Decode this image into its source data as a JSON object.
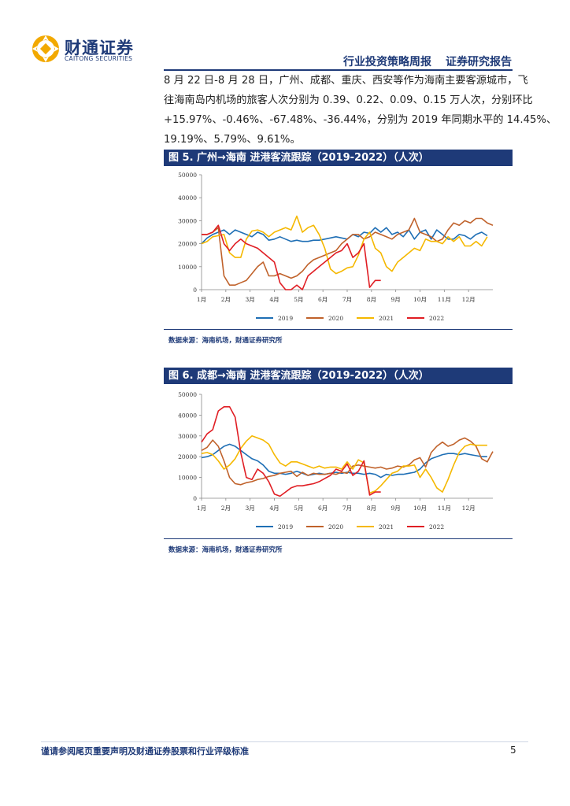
{
  "header": {
    "logo_name": "财通证券",
    "logo_sub": "CAITONG SECURITIES",
    "report_type": "行业投资策略周报",
    "report_category": "证券研究报告"
  },
  "body": {
    "lines": [
      "8 月 22 日-8 月 28 日，广州、成都、重庆、西安等作为海南主要客源城市，飞",
      "往海南岛内机场的旅客人次分别为 0.39、0.22、0.09、0.15 万人次，分别环比",
      "+15.97%、-0.46%、-67.48%、-36.44%，分别为 2019 年同期水平的 14.45%、",
      "19.19%、5.79%、9.61%。"
    ]
  },
  "figures": [
    {
      "caption": "图 5. 广州→海南  进港客流跟踪（2019-2022）（人次）",
      "source": "数据来源：海南机场，财通证券研究所"
    },
    {
      "caption": "图 6. 成都→海南  进港客流跟踪（2019-2022）（人次）",
      "source": "数据来源：海南机场，财通证券研究所"
    }
  ],
  "chart_data": [
    {
      "type": "line",
      "title": "广州→海南 进港客流跟踪（2019-2022）（人次）",
      "ylim": [
        0,
        50000
      ],
      "yticks": [
        "0",
        "10000",
        "20000",
        "30000",
        "40000",
        "50000"
      ],
      "month_labels": [
        "1月",
        "2月",
        "3月",
        "4月",
        "5月",
        "6月",
        "7月",
        "8月",
        "9月",
        "10月",
        "11月",
        "12月"
      ],
      "x_unit": "week",
      "series": [
        {
          "name": "2019",
          "color": "#1f6fb5",
          "values": [
            20000,
            22500,
            24000,
            25000,
            26000,
            24000,
            26000,
            25000,
            24000,
            23000,
            25000,
            24000,
            21500,
            22000,
            23000,
            22000,
            21000,
            21500,
            21000,
            21000,
            21500,
            21500,
            22000,
            22500,
            23000,
            22500,
            22000,
            24000,
            23000,
            25000,
            24500,
            27000,
            25000,
            27000,
            24000,
            25000,
            23000,
            26000,
            22000,
            25000,
            26000,
            22000,
            26000,
            24000,
            22000,
            22000,
            24000,
            23500,
            22000,
            24000,
            25000,
            23500
          ]
        },
        {
          "name": "2020",
          "color": "#c0622b",
          "values": [
            24000,
            24000,
            25000,
            27000,
            6000,
            2000,
            2000,
            3000,
            4000,
            7000,
            10000,
            12000,
            6000,
            6000,
            7000,
            6000,
            5000,
            6000,
            8000,
            11000,
            13000,
            14000,
            15000,
            16000,
            17000,
            20000,
            22000,
            24000,
            24000,
            22000,
            23000,
            25000,
            24000,
            23000,
            22000,
            24000,
            25000,
            26000,
            31000,
            25000,
            24000,
            23000,
            21000,
            22000,
            26000,
            29000,
            28000,
            30000,
            29000,
            31000,
            31000,
            29000,
            28000
          ]
        },
        {
          "name": "2021",
          "color": "#f5b800",
          "values": [
            20000,
            21000,
            23000,
            23500,
            24000,
            16000,
            14000,
            14000,
            22000,
            25500,
            26000,
            25000,
            23000,
            25000,
            26000,
            27000,
            26000,
            32000,
            25000,
            27000,
            28000,
            24000,
            18000,
            9000,
            7000,
            8000,
            9500,
            10000,
            15000,
            22000,
            25000,
            18000,
            16000,
            10000,
            8000,
            12000,
            14000,
            16000,
            18000,
            17000,
            22000,
            21000,
            21000,
            20000,
            23000,
            21000,
            23000,
            19000,
            19000,
            21000,
            19000,
            23000
          ]
        },
        {
          "name": "2022",
          "color": "#e01e24",
          "values": [
            24000,
            24000,
            25000,
            28000,
            20000,
            17000,
            20000,
            22000,
            20000,
            19000,
            18000,
            16000,
            14000,
            12000,
            3000,
            0,
            0,
            2000,
            0,
            6000,
            8000,
            10000,
            12000,
            14000,
            16000,
            17000,
            20000,
            14000,
            16000,
            20000,
            1000,
            4000,
            4000
          ]
        }
      ]
    },
    {
      "type": "line",
      "title": "成都→海南 进港客流跟踪（2019-2022）（人次）",
      "ylim": [
        0,
        50000
      ],
      "yticks": [
        "0",
        "10000",
        "20000",
        "30000",
        "40000",
        "50000"
      ],
      "month_labels": [
        "1月",
        "2月",
        "3月",
        "4月",
        "5月",
        "6月",
        "7月",
        "8月",
        "9月",
        "10月",
        "11月",
        "12月"
      ],
      "x_unit": "week",
      "series": [
        {
          "name": "2019",
          "color": "#1f6fb5",
          "values": [
            19500,
            20000,
            21000,
            23000,
            25000,
            26000,
            25000,
            23000,
            21000,
            19000,
            18000,
            16000,
            13000,
            12000,
            12000,
            11500,
            12000,
            13000,
            12000,
            11000,
            11500,
            12000,
            11500,
            12000,
            12500,
            12000,
            12500,
            12000,
            12000,
            11500,
            12000,
            11500,
            10000,
            11500,
            11000,
            11500,
            11500,
            12000,
            12500,
            14000,
            17000,
            19000,
            20000,
            21000,
            21500,
            21500,
            21000,
            21500,
            21000,
            20500,
            20000,
            20000
          ]
        },
        {
          "name": "2020",
          "color": "#c0622b",
          "values": [
            23000,
            24500,
            28000,
            25000,
            18000,
            10000,
            7000,
            6500,
            7500,
            8000,
            9000,
            9500,
            10500,
            11000,
            12000,
            12500,
            13000,
            10500,
            12500,
            11000,
            12000,
            11500,
            11500,
            12000,
            11500,
            12500,
            12000,
            15500,
            16000,
            15500,
            15000,
            14500,
            15000,
            14000,
            14500,
            15500,
            15000,
            16000,
            18500,
            19500,
            15000,
            22000,
            25000,
            27000,
            25000,
            26000,
            28000,
            29000,
            27500,
            25000,
            19000,
            17500,
            22500
          ]
        },
        {
          "name": "2021",
          "color": "#f5b800",
          "values": [
            21500,
            22000,
            21000,
            18000,
            14000,
            16000,
            19000,
            24000,
            27500,
            30000,
            29000,
            28000,
            26000,
            21000,
            17000,
            15500,
            17500,
            17500,
            16500,
            15500,
            14500,
            15500,
            14500,
            15000,
            15000,
            14000,
            17500,
            14000,
            18500,
            17000,
            2500,
            3500,
            6000,
            9000,
            12000,
            13000,
            15500,
            15500,
            16000,
            10000,
            14000,
            10000,
            5000,
            3000,
            9000,
            16000,
            22000,
            25000,
            26000,
            25500,
            25500,
            25500
          ]
        },
        {
          "name": "2022",
          "color": "#e01e24",
          "values": [
            27000,
            31000,
            33000,
            42000,
            44000,
            44000,
            39000,
            22000,
            10000,
            9000,
            14000,
            12000,
            8000,
            2000,
            1000,
            3000,
            5000,
            6000,
            6000,
            6500,
            7000,
            8000,
            9500,
            11000,
            14000,
            13000,
            16500,
            11000,
            13000,
            18000,
            1500,
            3000,
            3000
          ]
        }
      ]
    }
  ],
  "footer": {
    "disclaimer": "谨请参阅尾页重要声明及财通证券股票和行业评级标准",
    "page_number": "5"
  }
}
